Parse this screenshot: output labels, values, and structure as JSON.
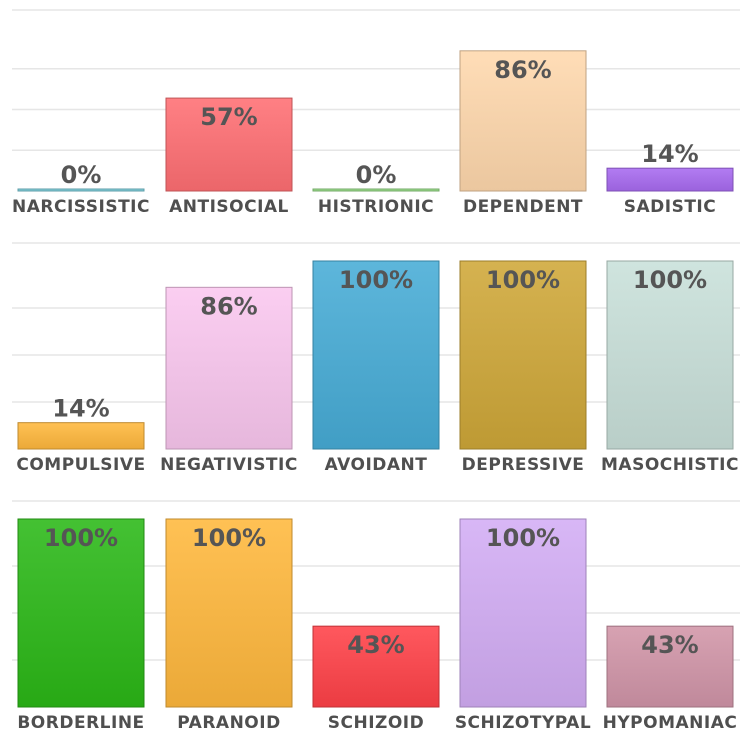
{
  "chart_data": [
    {
      "type": "bar",
      "categories": [
        "NARCISSISTIC",
        "ANTISOCIAL",
        "HISTRIONIC",
        "DEPENDENT",
        "SADISTIC"
      ],
      "values": [
        0,
        57,
        0,
        86,
        14
      ],
      "labels": [
        "0%",
        "57%",
        "0%",
        "86%",
        "14%"
      ],
      "colors": [
        "#7fd3e0",
        "#ff6f73",
        "#9be28a",
        "#ffd8ad",
        "#a86af0"
      ],
      "ylim": [
        0,
        100
      ],
      "grid": true
    },
    {
      "type": "bar",
      "categories": [
        "COMPULSIVE",
        "NEGATIVISTIC",
        "AVOIDANT",
        "DEPRESSIVE",
        "MASOCHISTIC"
      ],
      "values": [
        14,
        86,
        100,
        100,
        100
      ],
      "labels": [
        "14%",
        "86%",
        "100%",
        "100%",
        "100%"
      ],
      "colors": [
        "#ffb83d",
        "#fac7ef",
        "#47acd6",
        "#cfa738",
        "#c9e0d9"
      ],
      "ylim": [
        0,
        100
      ],
      "grid": true
    },
    {
      "type": "bar",
      "categories": [
        "BORDERLINE",
        "PARANOID",
        "SCHIZOID",
        "SCHIZOTYPAL",
        "HYPOMANIAC"
      ],
      "values": [
        100,
        100,
        43,
        100,
        43
      ],
      "labels": [
        "100%",
        "100%",
        "43%",
        "100%",
        "43%"
      ],
      "colors": [
        "#2bb817",
        "#ffb83d",
        "#ff4148",
        "#d3adf5",
        "#d195a8"
      ],
      "ylim": [
        0,
        100
      ],
      "grid": true
    }
  ]
}
